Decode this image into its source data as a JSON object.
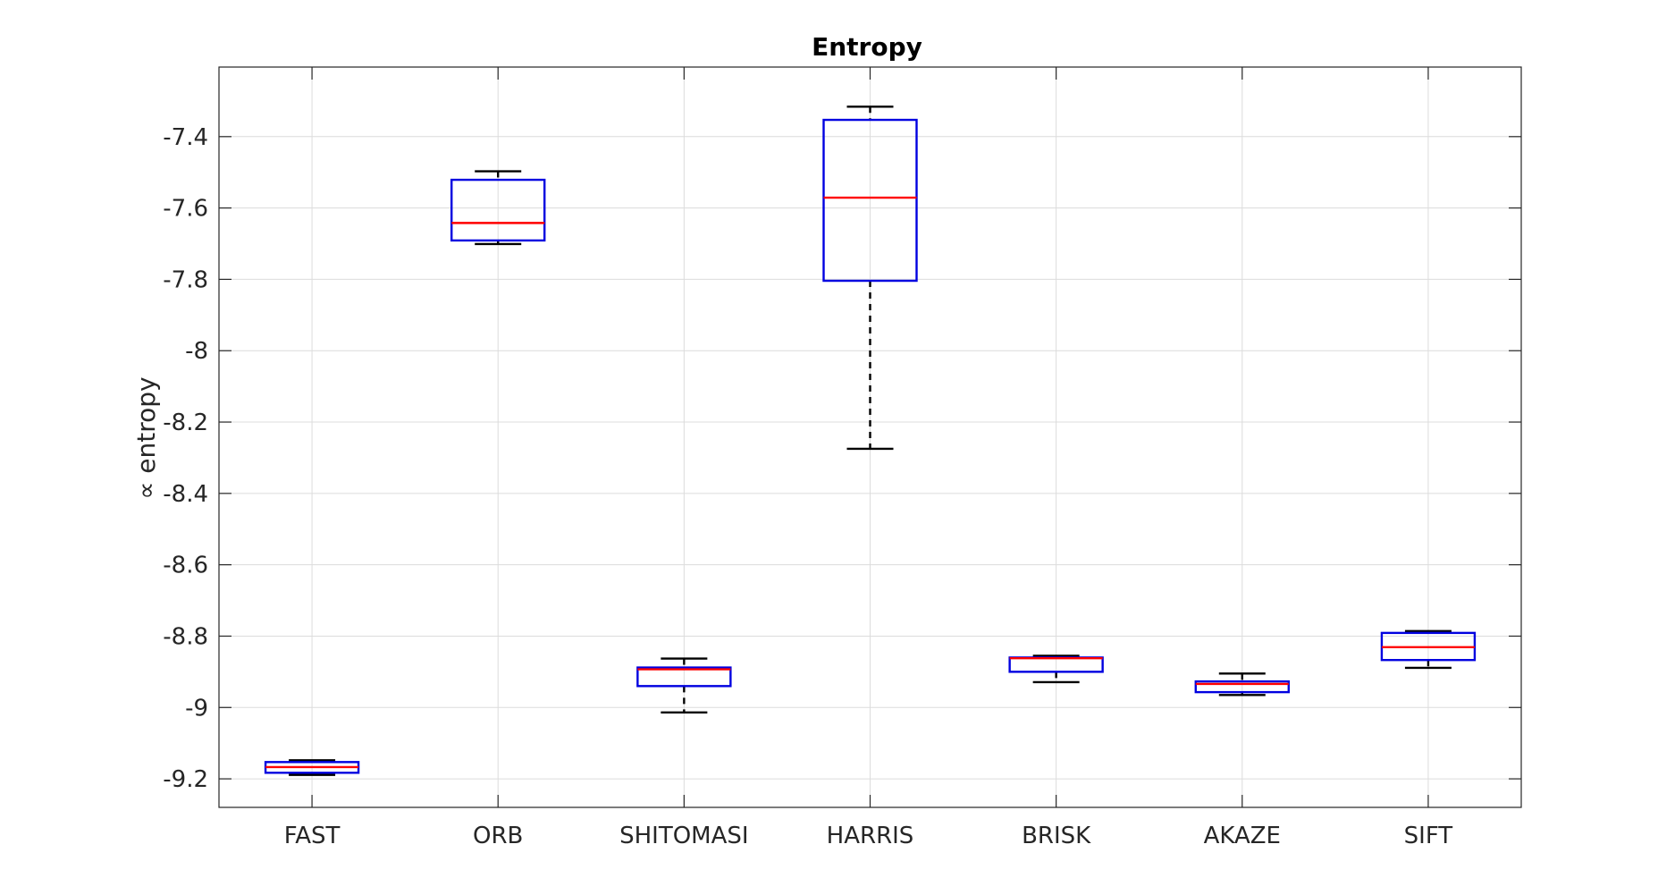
{
  "chart_data": {
    "type": "boxplot",
    "title": "Entropy",
    "xlabel": "",
    "ylabel": "∝ entropy",
    "categories": [
      "FAST",
      "ORB",
      "SHITOMASI",
      "HARRIS",
      "BRISK",
      "AKAZE",
      "SIFT"
    ],
    "boxes": [
      {
        "name": "FAST",
        "whisker_high": -9.148,
        "q3": -9.153,
        "median": -9.167,
        "q1": -9.183,
        "whisker_low": -9.189
      },
      {
        "name": "ORB",
        "whisker_high": -7.497,
        "q3": -7.521,
        "median": -7.642,
        "q1": -7.691,
        "whisker_low": -7.701
      },
      {
        "name": "SHITOMASI",
        "whisker_high": -8.863,
        "q3": -8.888,
        "median": -8.893,
        "q1": -8.94,
        "whisker_low": -9.014
      },
      {
        "name": "HARRIS",
        "whisker_high": -7.316,
        "q3": -7.353,
        "median": -7.571,
        "q1": -7.804,
        "whisker_low": -8.275
      },
      {
        "name": "BRISK",
        "whisker_high": -8.855,
        "q3": -8.86,
        "median": -8.862,
        "q1": -8.9,
        "whisker_low": -8.929
      },
      {
        "name": "AKAZE",
        "whisker_high": -8.905,
        "q3": -8.927,
        "median": -8.934,
        "q1": -8.957,
        "whisker_low": -8.965
      },
      {
        "name": "SIFT",
        "whisker_high": -8.786,
        "q3": -8.791,
        "median": -8.831,
        "q1": -8.867,
        "whisker_low": -8.889
      }
    ],
    "yticks": [
      -7.4,
      -7.6,
      -7.8,
      -8,
      -8.2,
      -8.4,
      -8.6,
      -8.8,
      -9,
      -9.2
    ],
    "ytick_labels": [
      "-7.4",
      "-7.6",
      "-7.8",
      "-8",
      "-8.2",
      "-8.4",
      "-8.6",
      "-8.8",
      "-9",
      "-9.2"
    ],
    "ylim": [
      -9.28,
      -7.205
    ],
    "grid": true,
    "colors": {
      "box": "#0000e0",
      "median": "#ff0000",
      "whisker": "#000000",
      "grid": "#dcdcdc",
      "axis": "#262626"
    }
  }
}
